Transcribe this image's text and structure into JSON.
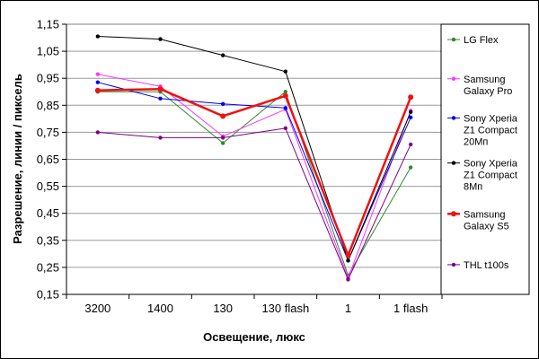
{
  "chart_data": {
    "type": "line",
    "title": "",
    "xlabel": "Освещение, люкс",
    "ylabel": "Разрешение, линии / пиксель",
    "categories": [
      "3200",
      "1400",
      "130",
      "130 flash",
      "1",
      "1 flash"
    ],
    "ylim": [
      0.15,
      1.15
    ],
    "yticks": [
      "1,15",
      "1,05",
      "0,95",
      "0,85",
      "0,75",
      "0,65",
      "0,55",
      "0,45",
      "0,35",
      "0,25",
      "0,15"
    ],
    "grid": "horizontal",
    "legend_position": "right",
    "series": [
      {
        "name": [
          "LG Flex"
        ],
        "color": "#2e8b2e",
        "emphasis": false,
        "values": [
          0.9,
          0.9,
          0.71,
          0.9,
          0.22,
          0.62
        ]
      },
      {
        "name": [
          "Samsung",
          "Galaxy Pro"
        ],
        "color": "#ff33ff",
        "emphasis": false,
        "values": [
          0.965,
          0.92,
          0.735,
          0.835,
          0.21,
          0.83
        ]
      },
      {
        "name": [
          "Sony Xperia",
          "Z1 Compact",
          "20Мп"
        ],
        "color": "#0000ee",
        "emphasis": false,
        "values": [
          0.935,
          0.875,
          0.855,
          0.84,
          0.275,
          0.805
        ]
      },
      {
        "name": [
          "Sony Xperia",
          "Z1 Compact",
          "8Мп"
        ],
        "color": "#000000",
        "emphasis": false,
        "values": [
          1.105,
          1.095,
          1.035,
          0.975,
          0.275,
          0.825
        ]
      },
      {
        "name": [
          "Samsung",
          "Galaxy S5"
        ],
        "color": "#ee1111",
        "emphasis": true,
        "values": [
          0.905,
          0.91,
          0.81,
          0.885,
          0.295,
          0.88
        ]
      },
      {
        "name": [
          "THL t100s"
        ],
        "color": "#800080",
        "emphasis": false,
        "values": [
          0.75,
          0.73,
          0.73,
          0.765,
          0.205,
          0.705
        ]
      }
    ]
  }
}
